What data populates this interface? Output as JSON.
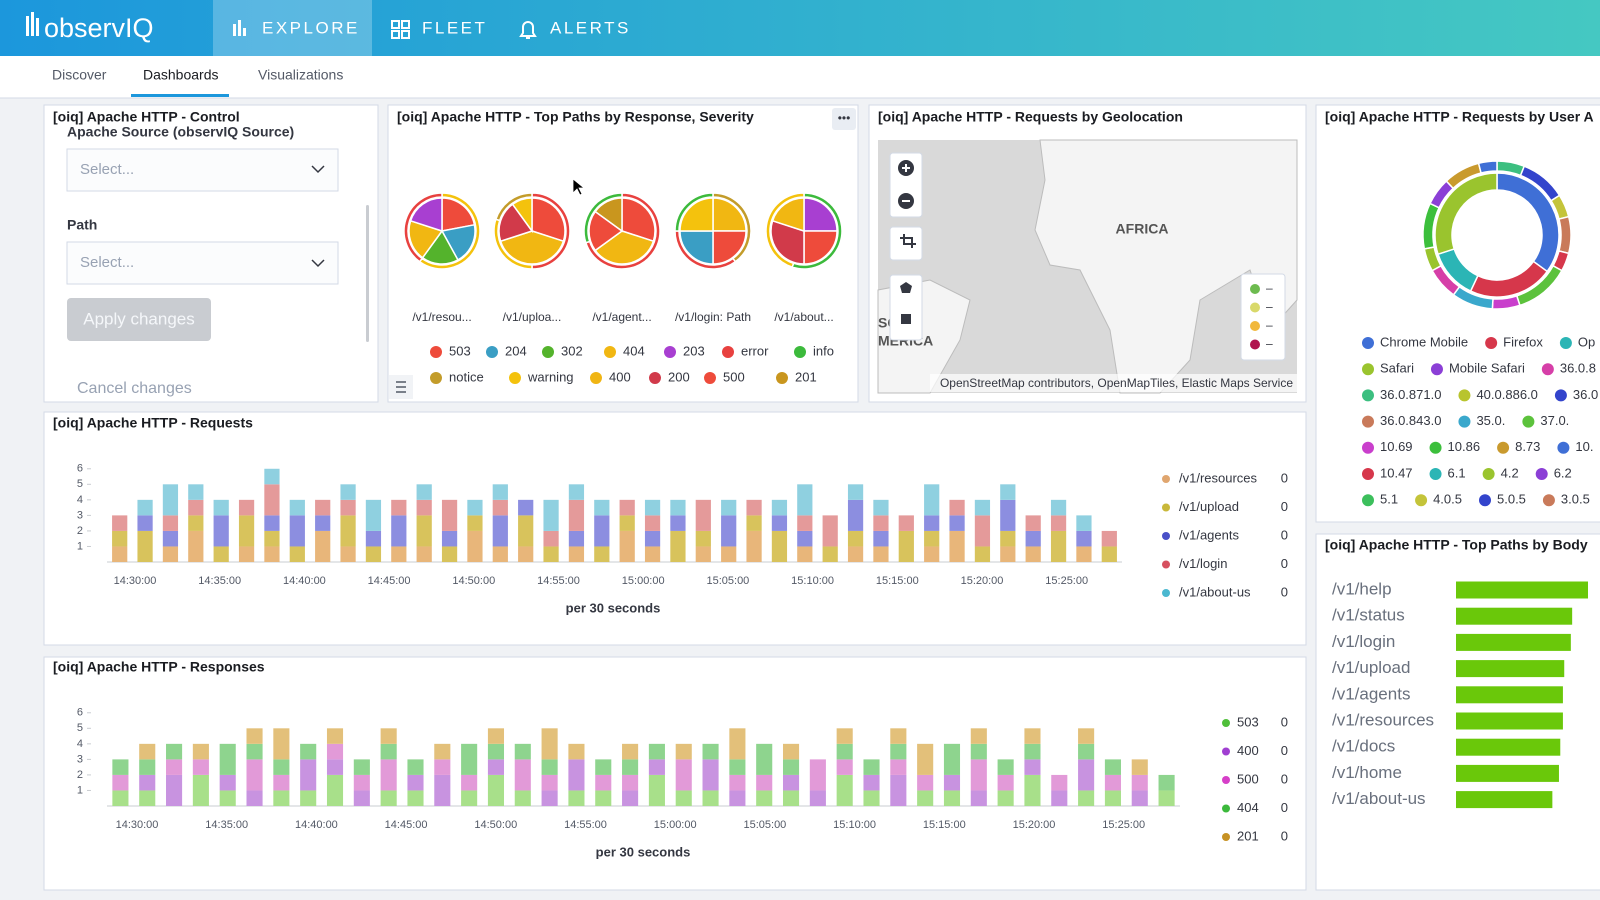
{
  "nav": {
    "logo": "observIQ",
    "tabs": [
      "EXPLORE",
      "FLEET",
      "ALERTS"
    ]
  },
  "subnav": [
    "Discover",
    "Dashboards",
    "Visualizations"
  ],
  "control": {
    "title": "[oiq] Apache HTTP - Control",
    "source_label": "Apache Source (observIQ Source)",
    "source_placeholder": "Select...",
    "path_label": "Path",
    "path_placeholder": "Select...",
    "apply": "Apply changes",
    "cancel": "Cancel changes"
  },
  "pies": {
    "type": "pie",
    "title": "[oiq] Apache HTTP - Top Paths by Response, Severity",
    "charts": [
      {
        "label": "/v1/resou...",
        "values": [
          22,
          20,
          18,
          20,
          20
        ],
        "colors": [
          "#ee4b3b",
          "#3a9ec4",
          "#54b32c",
          "#f1b712",
          "#a83fd1"
        ],
        "ring_values": [
          60,
          40
        ],
        "ring_colors": [
          "#f4c20d",
          "#e8413f"
        ]
      },
      {
        "label": "/v1/uploa...",
        "values": [
          30,
          40,
          20,
          10
        ],
        "colors": [
          "#ee4b3b",
          "#f1b712",
          "#d13a4a",
          "#f4c20d"
        ],
        "ring_values": [
          50,
          30,
          20
        ],
        "ring_colors": [
          "#e8413f",
          "#f4c20d",
          "#c39c2a"
        ]
      },
      {
        "label": "/v1/agent...",
        "values": [
          30,
          35,
          20,
          15
        ],
        "colors": [
          "#ee4b3b",
          "#f1b712",
          "#ee4b3b",
          "#c9961e"
        ],
        "ring_values": [
          70,
          30
        ],
        "ring_colors": [
          "#e8413f",
          "#3cba3c"
        ]
      },
      {
        "label": "/v1/login: Path",
        "values": [
          25,
          25,
          25,
          25
        ],
        "colors": [
          "#f1b712",
          "#ee4b3b",
          "#3a9ec4",
          "#f4c20d"
        ],
        "ring_values": [
          40,
          35,
          25
        ],
        "ring_colors": [
          "#c39c2a",
          "#e8413f",
          "#3cba3c"
        ]
      },
      {
        "label": "/v1/about...",
        "values": [
          25,
          25,
          30,
          20
        ],
        "colors": [
          "#a83fd1",
          "#ee4b3b",
          "#d13a4a",
          "#f1b712"
        ],
        "ring_values": [
          55,
          45
        ],
        "ring_colors": [
          "#3cba3c",
          "#f4c20d"
        ]
      }
    ],
    "legend": [
      {
        "name": "503",
        "color": "#ee4b3b"
      },
      {
        "name": "204",
        "color": "#3a9ec4"
      },
      {
        "name": "302",
        "color": "#54b32c"
      },
      {
        "name": "404",
        "color": "#f1b712"
      },
      {
        "name": "203",
        "color": "#a83fd1"
      },
      {
        "name": "error",
        "color": "#e8413f"
      },
      {
        "name": "info",
        "color": "#3cba3c"
      },
      {
        "name": "notice",
        "color": "#c39c2a"
      },
      {
        "name": "warning",
        "color": "#f4c20d"
      },
      {
        "name": "400",
        "color": "#f0b514"
      },
      {
        "name": "200",
        "color": "#d13a4a"
      },
      {
        "name": "500",
        "color": "#ee4b3b"
      },
      {
        "name": "201",
        "color": "#c9961e"
      }
    ]
  },
  "map": {
    "title": "[oiq] Apache HTTP - Requests by Geolocation",
    "region_label": "AFRICA",
    "edge_labels": [
      "SC",
      "MERICA"
    ],
    "attribution": "OpenStreetMap contributors, OpenMapTiles, Elastic Maps Service",
    "legend": [
      {
        "color": "#6dbb4f",
        "label": "–"
      },
      {
        "color": "#d9d96a",
        "label": "–"
      },
      {
        "color": "#f1b83c",
        "label": "–"
      },
      {
        "color": "#b0154f",
        "label": "–"
      }
    ]
  },
  "donut": {
    "type": "pie",
    "title": "[oiq] Apache HTTP - Requests by User A",
    "values": [
      35,
      22,
      13,
      30
    ],
    "colors": [
      "#3f6fd6",
      "#d6374b",
      "#2bb5b5",
      "#9ac42e"
    ],
    "ring_values": [
      6,
      10,
      5,
      8,
      4,
      12,
      6,
      9,
      7,
      5,
      10,
      6,
      8,
      4
    ],
    "ring_colors": [
      "#3cbf80",
      "#3344cc",
      "#c4c43a",
      "#c97a5a",
      "#d6374b",
      "#5cc23c",
      "#c93fcc",
      "#3aa8cc",
      "#d63fa8",
      "#9ac42e",
      "#3cbf3c",
      "#8b3fd6",
      "#c99a2e",
      "#3f6fd6"
    ],
    "legend": [
      [
        {
          "name": "Chrome Mobile",
          "color": "#3f6fd6"
        },
        {
          "name": "Firefox",
          "color": "#d6374b"
        },
        {
          "name": "Op",
          "color": "#2bb5b5"
        }
      ],
      [
        {
          "name": "Safari",
          "color": "#9ac42e"
        },
        {
          "name": "Mobile Safari",
          "color": "#8b3fd6"
        },
        {
          "name": "36.0.8",
          "color": "#d63fa8"
        }
      ],
      [
        {
          "name": "36.0.871.0",
          "color": "#3cbf80"
        },
        {
          "name": "40.0.886.0",
          "color": "#b8c42e"
        },
        {
          "name": "36.0",
          "color": "#3344cc"
        }
      ],
      [
        {
          "name": "36.0.843.0",
          "color": "#c97a5a"
        },
        {
          "name": "35.0.",
          "color": "#3aa8cc"
        },
        {
          "name": "37.0.",
          "color": "#5cc23c"
        }
      ],
      [
        {
          "name": "10.69",
          "color": "#c93fcc"
        },
        {
          "name": "10.86",
          "color": "#3cbf3c"
        },
        {
          "name": "8.73",
          "color": "#c99a2e"
        },
        {
          "name": "10.",
          "color": "#3f6fd6"
        }
      ],
      [
        {
          "name": "10.47",
          "color": "#d6374b"
        },
        {
          "name": "6.1",
          "color": "#2bb5b5"
        },
        {
          "name": "4.2",
          "color": "#9ac42e"
        },
        {
          "name": "6.2",
          "color": "#8b3fd6"
        }
      ],
      [
        {
          "name": "5.1",
          "color": "#3cbf5c"
        },
        {
          "name": "4.0.5",
          "color": "#c4c43a"
        },
        {
          "name": "5.0.5",
          "color": "#3344cc"
        },
        {
          "name": "3.0.5",
          "color": "#c97a5a"
        }
      ]
    ]
  },
  "requests": {
    "type": "bar",
    "stacked": true,
    "title": "[oiq] Apache HTTP - Requests",
    "xlabel": "per 30 seconds",
    "ylim": [
      0,
      6.5
    ],
    "yticks": [
      1,
      2,
      3,
      4,
      5,
      6
    ],
    "time_labels": [
      "14:30:00",
      "14:35:00",
      "14:40:00",
      "14:45:00",
      "14:50:00",
      "14:55:00",
      "15:00:00",
      "15:05:00",
      "15:10:00",
      "15:15:00",
      "15:20:00",
      "15:25:00"
    ],
    "series": [
      {
        "name": "/v1/resources",
        "color": "#e8b67a",
        "values": [
          1,
          0,
          1,
          2,
          0,
          1,
          1,
          0,
          2,
          1,
          0,
          1,
          1,
          0,
          2,
          1,
          1,
          0,
          1,
          0,
          2,
          1,
          0,
          1,
          1,
          2,
          0,
          1,
          0,
          1,
          1,
          0,
          1,
          2,
          0,
          1,
          1,
          0,
          1,
          0
        ]
      },
      {
        "name": "/v1/upload",
        "color": "#d8c35c",
        "values": [
          1,
          2,
          0,
          1,
          1,
          2,
          1,
          1,
          0,
          2,
          1,
          0,
          2,
          1,
          1,
          0,
          2,
          1,
          0,
          1,
          1,
          0,
          2,
          1,
          0,
          1,
          2,
          0,
          1,
          1,
          0,
          2,
          1,
          0,
          1,
          1,
          0,
          2,
          0,
          1
        ]
      },
      {
        "name": "/v1/agents",
        "color": "#8c8ee0",
        "values": [
          0,
          1,
          1,
          0,
          2,
          0,
          1,
          2,
          1,
          0,
          1,
          2,
          0,
          1,
          0,
          2,
          1,
          0,
          1,
          2,
          0,
          1,
          1,
          0,
          2,
          0,
          1,
          1,
          0,
          2,
          1,
          0,
          1,
          1,
          0,
          2,
          1,
          0,
          1,
          0
        ]
      },
      {
        "name": "/v1/login",
        "color": "#e49a9a",
        "values": [
          1,
          0,
          1,
          1,
          0,
          1,
          2,
          0,
          1,
          1,
          0,
          1,
          1,
          2,
          0,
          1,
          0,
          1,
          2,
          0,
          1,
          1,
          0,
          2,
          0,
          1,
          0,
          1,
          2,
          0,
          1,
          1,
          0,
          1,
          2,
          0,
          1,
          1,
          0,
          1
        ]
      },
      {
        "name": "/v1/about-us",
        "color": "#8fd0e0",
        "values": [
          0,
          1,
          2,
          1,
          1,
          0,
          1,
          1,
          0,
          1,
          2,
          0,
          1,
          0,
          1,
          1,
          0,
          2,
          1,
          1,
          0,
          1,
          1,
          0,
          1,
          0,
          1,
          2,
          0,
          1,
          1,
          0,
          2,
          0,
          1,
          1,
          0,
          1,
          1,
          0
        ]
      }
    ],
    "legend_counts": [
      0,
      0,
      0,
      0,
      0
    ],
    "legend_colors": [
      "#e0a66f",
      "#c9b83a",
      "#4a50c8",
      "#d6505f",
      "#4bb8d0"
    ]
  },
  "responses": {
    "type": "bar",
    "stacked": true,
    "title": "[oiq] Apache HTTP - Responses",
    "xlabel": "per 30 seconds",
    "ylim": [
      0,
      6.5
    ],
    "yticks": [
      1,
      2,
      3,
      4,
      5,
      6
    ],
    "time_labels": [
      "14:30:00",
      "14:35:00",
      "14:40:00",
      "14:45:00",
      "14:50:00",
      "14:55:00",
      "15:00:00",
      "15:05:00",
      "15:10:00",
      "15:15:00",
      "15:20:00",
      "15:25:00"
    ],
    "series": [
      {
        "name": "503",
        "color": "#a8e08a",
        "values": [
          1,
          1,
          0,
          2,
          1,
          0,
          1,
          1,
          2,
          0,
          1,
          1,
          0,
          1,
          2,
          1,
          0,
          1,
          1,
          0,
          2,
          1,
          1,
          0,
          1,
          1,
          0,
          2,
          1,
          0,
          1,
          1,
          0,
          1,
          2,
          0,
          1,
          1,
          0,
          1
        ]
      },
      {
        "name": "400",
        "color": "#c893e0",
        "values": [
          0,
          1,
          2,
          0,
          1,
          1,
          0,
          2,
          1,
          1,
          0,
          1,
          2,
          0,
          1,
          0,
          1,
          2,
          0,
          1,
          1,
          0,
          2,
          1,
          0,
          1,
          1,
          0,
          1,
          2,
          0,
          1,
          1,
          0,
          1,
          1,
          2,
          0,
          1,
          0
        ]
      },
      {
        "name": "500",
        "color": "#e29ad8",
        "values": [
          1,
          0,
          1,
          1,
          0,
          2,
          1,
          0,
          1,
          1,
          2,
          0,
          1,
          1,
          0,
          2,
          1,
          0,
          1,
          1,
          0,
          2,
          0,
          1,
          1,
          0,
          2,
          1,
          0,
          1,
          1,
          0,
          2,
          1,
          0,
          1,
          0,
          1,
          1,
          0
        ]
      },
      {
        "name": "404",
        "color": "#8ed48e",
        "values": [
          1,
          1,
          1,
          0,
          2,
          1,
          1,
          1,
          0,
          1,
          1,
          1,
          0,
          2,
          1,
          1,
          1,
          0,
          1,
          1,
          1,
          0,
          1,
          1,
          2,
          1,
          0,
          1,
          1,
          1,
          0,
          2,
          1,
          1,
          1,
          0,
          1,
          1,
          0,
          1
        ]
      },
      {
        "name": "201",
        "color": "#e3c07a",
        "values": [
          0,
          1,
          0,
          1,
          0,
          1,
          2,
          0,
          1,
          0,
          1,
          0,
          1,
          0,
          1,
          0,
          2,
          1,
          0,
          1,
          0,
          1,
          0,
          2,
          0,
          1,
          0,
          1,
          0,
          1,
          2,
          0,
          1,
          0,
          1,
          0,
          1,
          0,
          1,
          0
        ]
      }
    ],
    "legend_counts": [
      0,
      0,
      0,
      0,
      0
    ],
    "legend_colors": [
      "#4fbf3a",
      "#a03fd1",
      "#d63fc8",
      "#3cb93c",
      "#c79224"
    ]
  },
  "top_paths": {
    "type": "hbar",
    "title": "[oiq] Apache HTTP - Top Paths by Body",
    "color": "#6ac80a",
    "categories": [
      "/v1/help",
      "/v1/status",
      "/v1/login",
      "/v1/upload",
      "/v1/agents",
      "/v1/resources",
      "/v1/docs",
      "/v1/home",
      "/v1/about-us"
    ],
    "values": [
      100,
      88,
      87,
      82,
      81,
      81,
      79,
      78,
      73
    ]
  }
}
